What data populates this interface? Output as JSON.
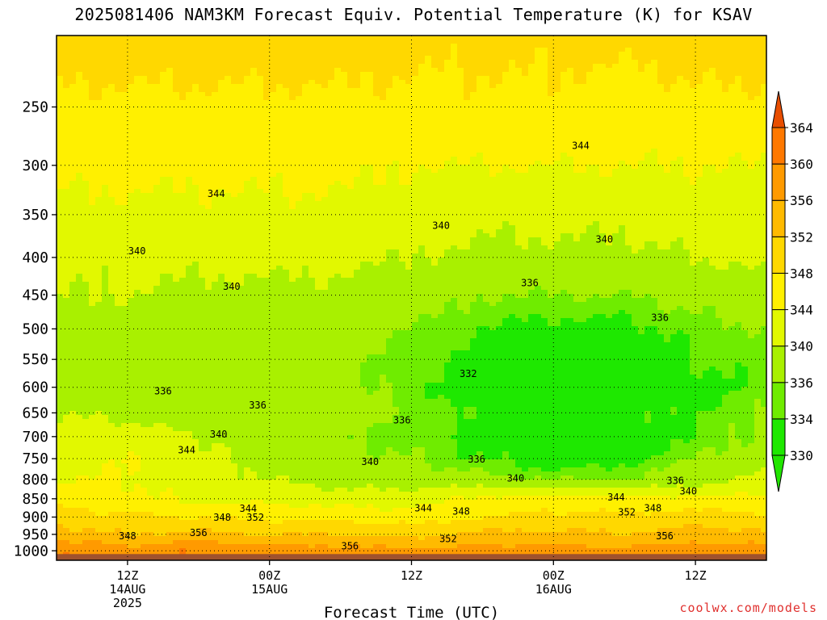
{
  "title": "2025081406 NAM3KM Forecast Equiv. Potential Temperature (K) for KSAV",
  "credit": "coolwx.com/models",
  "chart_data": {
    "type": "heatmap",
    "title": "2025081406 NAM3KM Forecast Equiv. Potential Temperature (K) for KSAV",
    "xlabel": "Forecast Time (UTC)",
    "ylabel": "",
    "y_scale": "log",
    "ylim": [
      1030,
      200
    ],
    "xlim_hours_from_start": [
      0,
      60
    ],
    "y_ticks": [
      250,
      300,
      350,
      400,
      450,
      500,
      550,
      600,
      650,
      700,
      750,
      800,
      850,
      900,
      950,
      1000
    ],
    "x_ticks": [
      {
        "hour": 6,
        "lines": [
          "12Z",
          "14AUG",
          "2025"
        ]
      },
      {
        "hour": 18,
        "lines": [
          "00Z",
          "15AUG"
        ]
      },
      {
        "hour": 30,
        "lines": [
          "12Z"
        ]
      },
      {
        "hour": 42,
        "lines": [
          "00Z",
          "16AUG"
        ]
      },
      {
        "hour": 54,
        "lines": [
          "12Z"
        ]
      }
    ],
    "grid": true,
    "colorbar": {
      "levels": [
        330,
        334,
        336,
        340,
        344,
        348,
        352,
        356,
        360,
        364
      ],
      "colors": [
        "#1ee800",
        "#6fec00",
        "#a9f000",
        "#e2f800",
        "#fff000",
        "#ffd800",
        "#ffba00",
        "#ff9a00",
        "#ff7800",
        "#f45000"
      ],
      "under_color": "#22e600",
      "over_color": "#e84e00"
    },
    "profile_time_hours": [
      0,
      6,
      12,
      18,
      24,
      30,
      36,
      42,
      48,
      54,
      60
    ],
    "profile_pressure_hpa": [
      1000,
      950,
      900,
      850,
      800,
      750,
      700,
      650,
      600,
      550,
      500,
      450,
      400,
      350,
      300,
      250,
      200
    ],
    "theta_e_k": [
      [
        360,
        358,
        360,
        358,
        358,
        357,
        358,
        358,
        357,
        358,
        358
      ],
      [
        354,
        352,
        353,
        352,
        352,
        351,
        353,
        353,
        352,
        354,
        353
      ],
      [
        350,
        349,
        348,
        347,
        347,
        346,
        348,
        349,
        349,
        350,
        349
      ],
      [
        346,
        345,
        343,
        343,
        342,
        342,
        345,
        346,
        345,
        345,
        345
      ],
      [
        344,
        344,
        342,
        340,
        338,
        338,
        337,
        336,
        336,
        338,
        341
      ],
      [
        342,
        344,
        341,
        339,
        337,
        336,
        334,
        332,
        333,
        336,
        338
      ],
      [
        341,
        342,
        340,
        338,
        336,
        335,
        333,
        333,
        333,
        334,
        337
      ],
      [
        340,
        339,
        338,
        337,
        337,
        336,
        333,
        333,
        333,
        334,
        336
      ],
      [
        339,
        337,
        337,
        337,
        337,
        335,
        332,
        332,
        332,
        333,
        335
      ],
      [
        338,
        337,
        338,
        337,
        337,
        335,
        333,
        332,
        332,
        334,
        335
      ],
      [
        339,
        338,
        338,
        338,
        338,
        336,
        334,
        333,
        333,
        335,
        336
      ],
      [
        340,
        340,
        339,
        339,
        339,
        338,
        336,
        336,
        336,
        337,
        339
      ],
      [
        341,
        341,
        341,
        341,
        341,
        340,
        339,
        339,
        339,
        340,
        341
      ],
      [
        343,
        343,
        343,
        343,
        343,
        342,
        341,
        341,
        341,
        342,
        342
      ],
      [
        345,
        345,
        345,
        345,
        345,
        344,
        344,
        344,
        344,
        344,
        344
      ],
      [
        347,
        347,
        347,
        347,
        347,
        347,
        347,
        347,
        346,
        347,
        347
      ],
      [
        350,
        350,
        350,
        350,
        350,
        349,
        349,
        349,
        349,
        350,
        350
      ]
    ],
    "contour_labels": [
      {
        "text": "344",
        "hour": 13.5,
        "p": 328
      },
      {
        "text": "344",
        "hour": 44.3,
        "p": 282
      },
      {
        "text": "340",
        "hour": 6.8,
        "p": 392
      },
      {
        "text": "340",
        "hour": 32.5,
        "p": 362
      },
      {
        "text": "340",
        "hour": 46.3,
        "p": 378
      },
      {
        "text": "340",
        "hour": 14.8,
        "p": 438
      },
      {
        "text": "336",
        "hour": 40.0,
        "p": 433
      },
      {
        "text": "336",
        "hour": 51.0,
        "p": 483
      },
      {
        "text": "332",
        "hour": 34.8,
        "p": 575
      },
      {
        "text": "336",
        "hour": 9.0,
        "p": 607
      },
      {
        "text": "336",
        "hour": 17.0,
        "p": 635
      },
      {
        "text": "336",
        "hour": 29.2,
        "p": 665
      },
      {
        "text": "340",
        "hour": 13.7,
        "p": 695
      },
      {
        "text": "344",
        "hour": 11.0,
        "p": 730
      },
      {
        "text": "340",
        "hour": 26.5,
        "p": 757
      },
      {
        "text": "336",
        "hour": 35.5,
        "p": 752
      },
      {
        "text": "340",
        "hour": 38.8,
        "p": 797
      },
      {
        "text": "336",
        "hour": 52.3,
        "p": 803
      },
      {
        "text": "340",
        "hour": 53.4,
        "p": 830
      },
      {
        "text": "344",
        "hour": 16.2,
        "p": 877
      },
      {
        "text": "344",
        "hour": 31.0,
        "p": 875
      },
      {
        "text": "348",
        "hour": 34.2,
        "p": 884
      },
      {
        "text": "344",
        "hour": 47.3,
        "p": 846
      },
      {
        "text": "348",
        "hour": 50.4,
        "p": 875
      },
      {
        "text": "352",
        "hour": 48.2,
        "p": 887
      },
      {
        "text": "348",
        "hour": 14.0,
        "p": 901
      },
      {
        "text": "352",
        "hour": 16.8,
        "p": 901
      },
      {
        "text": "356",
        "hour": 12.0,
        "p": 945
      },
      {
        "text": "348",
        "hour": 6.0,
        "p": 955
      },
      {
        "text": "356",
        "hour": 24.8,
        "p": 985
      },
      {
        "text": "352",
        "hour": 33.1,
        "p": 964
      },
      {
        "text": "356",
        "hour": 51.4,
        "p": 955
      }
    ]
  }
}
